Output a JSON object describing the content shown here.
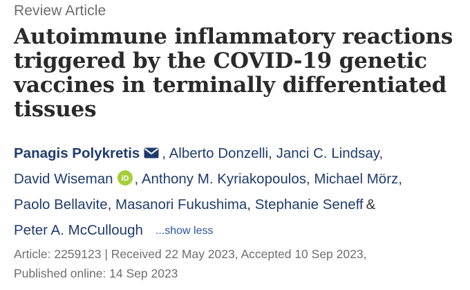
{
  "article_type": "Review Article",
  "title": "Autoimmune inflammatory reactions triggered by the COVID-19 genetic vaccines in terminally differentiated tissues",
  "authors": {
    "a1": "Panagis Polykretis",
    "a2": "Alberto Donzelli",
    "a3": "Janci C. Lindsay",
    "a4": "David Wiseman",
    "a5": "Anthony M. Kyriakopoulos",
    "a6": "Michael Mörz",
    "a7": "Paolo Bellavite",
    "a8": "Masanori Fukushima",
    "a9": "Stephanie Seneff",
    "a10": "Peter A. McCullough",
    "comma": ",",
    "ampersand": "&",
    "show_less": "...show less",
    "orcid_label": "iD"
  },
  "meta": {
    "line1": "Article: 2259123 | Received 22 May 2023, Accepted 10 Sep 2023,",
    "line2": "Published online: 14 Sep 2023"
  },
  "colors": {
    "author_link": "#1f3b6e",
    "show_less_link": "#2a55a5",
    "orcid_green": "#a6ce39",
    "muted_text": "#6e6e6e"
  },
  "icons": {
    "corresponding_author": "mail-icon",
    "orcid": "orcid-icon"
  }
}
